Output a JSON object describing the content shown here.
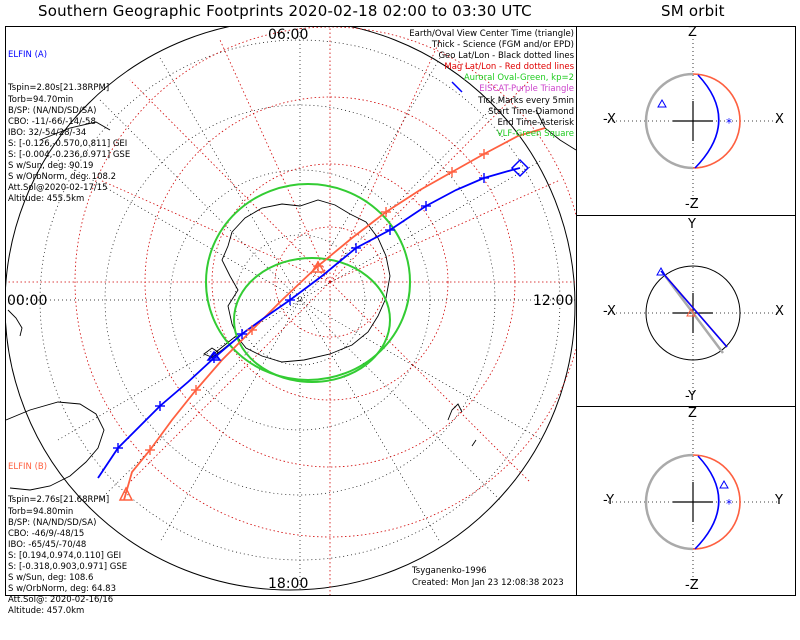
{
  "header": {
    "main_title": "Southern Geographic Footprints 2020-02-18 02:00 to 03:30 UTC",
    "orbit_title": "SM orbit"
  },
  "map": {
    "hour_labels": {
      "top": "06:00",
      "left": "00:00",
      "right": "12:00",
      "bottom": "18:00"
    }
  },
  "legend": [
    {
      "text": "Earth/Oval View Center Time (triangle)",
      "color": "#000000"
    },
    {
      "text": "Thick - Science (FGM and/or EPD)",
      "color": "#000000"
    },
    {
      "text": "Geo Lat/Lon - Black dotted lines",
      "color": "#000000"
    },
    {
      "text": "Mag Lat/Lon - Red dotted lines",
      "color": "#e00000"
    },
    {
      "text": "Auroral Oval-Green, kp=2",
      "color": "#22cc22"
    },
    {
      "text": "EISCAT-Purple Triangle",
      "color": "#cc44cc"
    },
    {
      "text": "Tick Marks every 5min",
      "color": "#000000"
    },
    {
      "text": "Start Time-Diamond",
      "color": "#000000"
    },
    {
      "text": "End Time-Asterisk",
      "color": "#000000"
    },
    {
      "text": "VLF-Green Square",
      "color": "#22cc22"
    }
  ],
  "elfin_a": {
    "name": "ELFIN (A)",
    "color": "#0000ff",
    "lines": [
      "Tspin=2.80s[21.38RPM]",
      "Torb=94.70min",
      "B/SP: (NA/ND/SD/SA)",
      "CBO: -11/-66/-14/-58",
      "IBO: 32/-54/28/-34",
      "S: [-0.126,-0.570,0.811] GEI",
      "S: [-0.004,-0.236,0.971] GSE",
      "S w/Sun, deg: 90.19",
      "S w/OrbNorm, deg: 108.2",
      "Att.Sol@2020-02-17/15",
      "Altitude: 455.5km"
    ]
  },
  "elfin_b": {
    "name": "ELFIN (B)",
    "color": "#ff6040",
    "lines": [
      "Tspin=2.76s[21.68RPM]",
      "Torb=94.80min",
      "B/SP: (NA/ND/SD/SA)",
      "CBO: -46/9/-48/15",
      "IBO: -65/45/-70/48",
      "S: [0.194,0.974,0.110] GEI",
      "S: [-0.318,0.903,0.971] GSE",
      "S w/Sun, deg: 108.6",
      "S w/OrbNorm, deg: 64.83",
      "Att.Sol@: 2020-02-16/16",
      "Altitude: 457.0km"
    ]
  },
  "credits": {
    "model": "Tsyganenko-1996",
    "created": "Created: Mon Jan 23 12:08:38 2023"
  },
  "orbit_panels": [
    {
      "top": "Z",
      "bottom": "-Z",
      "left": "-X",
      "right": "X"
    },
    {
      "top": "Y",
      "bottom": "-Y",
      "left": "-X",
      "right": "X"
    },
    {
      "top": "Z",
      "bottom": "-Z",
      "left": "-Y",
      "right": "Y"
    }
  ],
  "colors": {
    "elfin_a": "#0000ff",
    "elfin_b": "#ff6040",
    "mag_grid": "#d00000",
    "geo_grid": "#000000",
    "auroral_oval": "#33cc33",
    "earth_circle": "#999999"
  }
}
